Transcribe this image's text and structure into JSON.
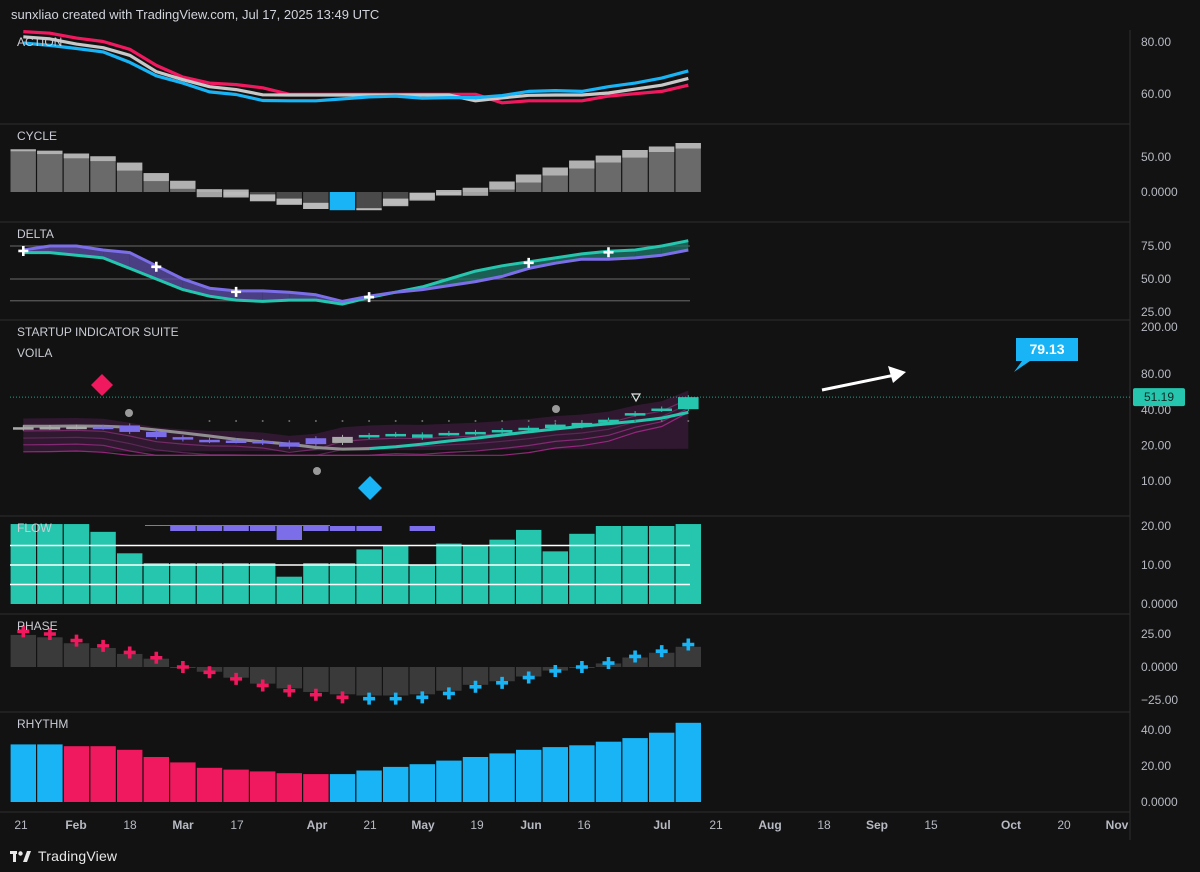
{
  "header": {
    "text": "sunxliao created with TradingView.com, Jul 17, 2025 13:49 UTC"
  },
  "footer": {
    "logo_icon": "tradingview-logo-icon",
    "brand": "TradingView"
  },
  "colors": {
    "background": "#121212",
    "pink": "#f0195f",
    "blue": "#18b4f5",
    "teal": "#25c6ad",
    "purple": "#7b6ee8",
    "gray": "#6a6a6a",
    "light_gray": "#c8c8c8",
    "white": "#ffffff"
  },
  "chart_data": [
    {
      "type": "line",
      "title": "ACTION",
      "y_ticks": [
        "80.00",
        "60.00"
      ],
      "series": [
        {
          "color": "#f0195f",
          "values": [
            84,
            83.4,
            81.5,
            80.2,
            77.2,
            71,
            66.5,
            64.2,
            63.6,
            62.4,
            59.9,
            59.9,
            59.9,
            59.9,
            59.9,
            59.9,
            59.9,
            59.9,
            56.6,
            57.4,
            57.4,
            57.4,
            59.2,
            60.1,
            61,
            63.4
          ]
        },
        {
          "color": "#c8c8c8",
          "values": [
            82,
            81.2,
            79.2,
            77.8,
            74.9,
            68.6,
            65.5,
            62.8,
            61.7,
            59.7,
            59.6,
            59.6,
            59.6,
            59.6,
            59.6,
            59.6,
            59.6,
            57.4,
            58.5,
            59.5,
            59.6,
            59.6,
            60.4,
            61.9,
            63.4,
            66
          ]
        },
        {
          "color": "#18b4f5",
          "values": [
            79.6,
            78.7,
            77.5,
            76.2,
            72.2,
            67,
            64.2,
            60.8,
            59.8,
            57.5,
            57.4,
            57.4,
            58.1,
            58.9,
            59.2,
            58.4,
            58.6,
            58.6,
            59.4,
            61,
            61.3,
            61,
            62.8,
            64.2,
            66.1,
            68.9
          ]
        }
      ]
    },
    {
      "type": "bar",
      "title": "CYCLE",
      "y_ticks": [
        "50.00",
        "0.0000"
      ],
      "values": [
        61,
        59,
        55,
        51,
        42,
        27,
        16,
        4,
        -5,
        -12,
        -18,
        -24,
        -26,
        -26,
        -18,
        -10,
        -5,
        6,
        15,
        25,
        35,
        45,
        52,
        60,
        65,
        70
      ],
      "highlight": {
        "index": 12,
        "color": "#18b4f5"
      }
    },
    {
      "type": "area",
      "title": "DELTA",
      "y_ticks": [
        "75.00",
        "50.00",
        "25.00"
      ],
      "series": [
        {
          "color": "#25c6ad",
          "values": [
            70,
            70,
            68,
            66,
            58,
            50,
            42,
            37,
            34,
            33,
            34,
            34,
            31,
            36,
            40,
            44,
            50,
            56,
            60,
            63,
            66,
            69,
            71,
            72,
            75,
            79
          ]
        },
        {
          "color": "#7b6ee8",
          "values": [
            72,
            75,
            75,
            72,
            70,
            60,
            50,
            43,
            41,
            41,
            40,
            38,
            33,
            37,
            40,
            42,
            45,
            48,
            52,
            58,
            62,
            65,
            65,
            66,
            68,
            72
          ]
        }
      ],
      "signal_markers": [
        0,
        5,
        8,
        13,
        19,
        22
      ]
    },
    {
      "type": "bar",
      "title": "STARTUP INDICATOR SUITE",
      "subtitle": "VOILA",
      "y_ticks": [
        "200.00",
        "80.00",
        "40.00",
        "20.00",
        "10.00"
      ],
      "last_value": "51.19",
      "callout": "79.13"
    },
    {
      "type": "bar",
      "title": "FLOW",
      "y_ticks": [
        "20.00",
        "10.00",
        "0.0000"
      ],
      "values": [
        20.5,
        20.5,
        20.5,
        18.5,
        13,
        10.5,
        10.5,
        10.5,
        10.5,
        10.5,
        7,
        10.5,
        10.5,
        14,
        15,
        10,
        15.5,
        15,
        16.5,
        19,
        13.5,
        18,
        20,
        20,
        20,
        20.5
      ]
    },
    {
      "type": "bar",
      "title": "PHASE",
      "y_ticks": [
        "25.00",
        "0.0000",
        "−25.00"
      ],
      "values": [
        27,
        25,
        20,
        16,
        11,
        7,
        0,
        -4,
        -9,
        -14,
        -18,
        -21,
        -23,
        -24,
        -24,
        -23,
        -20,
        -15,
        -12,
        -8,
        -3,
        0,
        3,
        8,
        12,
        17
      ]
    },
    {
      "type": "bar",
      "title": "RHYTHM",
      "y_ticks": [
        "40.00",
        "20.00",
        "0.0000"
      ],
      "values": [
        32,
        32,
        31,
        31,
        29,
        25,
        22,
        19,
        18,
        17,
        16,
        15.5,
        15.5,
        17.5,
        19.5,
        21,
        23,
        25,
        27,
        29,
        30.5,
        31.5,
        33.5,
        35.5,
        38.5,
        44
      ]
    }
  ],
  "x_axis": {
    "labels": [
      {
        "label": "21",
        "bold": false
      },
      {
        "label": "Feb",
        "bold": true
      },
      {
        "label": "18",
        "bold": false
      },
      {
        "label": "Mar",
        "bold": true
      },
      {
        "label": "17",
        "bold": false
      },
      {
        "label": "Apr",
        "bold": true
      },
      {
        "label": "21",
        "bold": false
      },
      {
        "label": "May",
        "bold": true
      },
      {
        "label": "19",
        "bold": false
      },
      {
        "label": "Jun",
        "bold": true
      },
      {
        "label": "16",
        "bold": false
      },
      {
        "label": "Jul",
        "bold": true
      },
      {
        "label": "21",
        "bold": false
      },
      {
        "label": "Aug",
        "bold": true
      },
      {
        "label": "18",
        "bold": false
      },
      {
        "label": "Sep",
        "bold": true
      },
      {
        "label": "15",
        "bold": false
      },
      {
        "label": "Oct",
        "bold": true
      },
      {
        "label": "20",
        "bold": false
      },
      {
        "label": "Nov",
        "bold": true
      }
    ]
  }
}
